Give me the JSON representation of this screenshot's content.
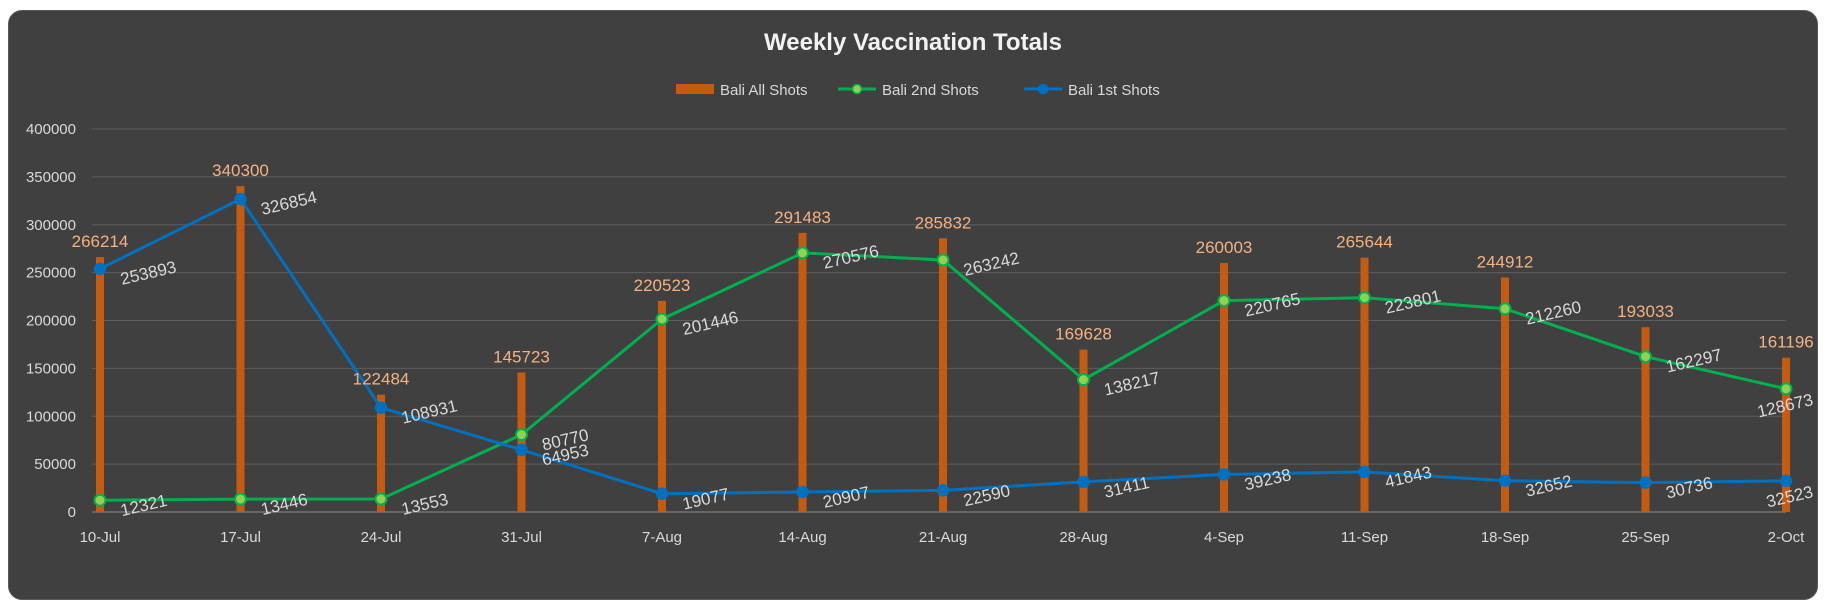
{
  "chart_data": {
    "type": "bar+line",
    "title": "Weekly Vaccination Totals",
    "categories": [
      "10-Jul",
      "17-Jul",
      "24-Jul",
      "31-Jul",
      "7-Aug",
      "14-Aug",
      "21-Aug",
      "28-Aug",
      "4-Sep",
      "11-Sep",
      "18-Sep",
      "25-Sep",
      "2-Oct"
    ],
    "ylim": [
      0,
      400000
    ],
    "yticks": [
      0,
      50000,
      100000,
      150000,
      200000,
      250000,
      300000,
      350000,
      400000
    ],
    "ytick_labels": [
      "0",
      "50000",
      "100000",
      "150000",
      "200000",
      "250000",
      "300000",
      "350000",
      "400000"
    ],
    "grid": true,
    "legend_position": "top",
    "series": [
      {
        "name": "Bali All Shots",
        "type": "bar",
        "color": "#c55a11",
        "label_color": "#f4b183",
        "values": [
          266214,
          340300,
          122484,
          145723,
          220523,
          291483,
          285832,
          169628,
          260003,
          265644,
          244912,
          193033,
          161196
        ],
        "labels": [
          "266214",
          "340300",
          "122484",
          "145723",
          "220523",
          "291483",
          "285832",
          "169628",
          "260003",
          "265644",
          "244912",
          "193033",
          "161196"
        ]
      },
      {
        "name": "Bali 2nd Shots",
        "type": "line",
        "color": "#00b050",
        "marker_color": "#92d050",
        "values": [
          12321,
          13446,
          13553,
          80770,
          201446,
          270576,
          263242,
          138217,
          220765,
          223801,
          212260,
          162297,
          128673
        ],
        "labels": [
          "12321",
          "13446",
          "13553",
          "80770",
          "201446",
          "270576",
          "263242",
          "138217",
          "220765",
          "223801",
          "212260",
          "162297",
          "128673"
        ]
      },
      {
        "name": "Bali 1st Shots",
        "type": "line",
        "color": "#0070c0",
        "marker_color": "#0070c0",
        "values": [
          253893,
          326854,
          108931,
          64953,
          19077,
          20907,
          22590,
          31411,
          39238,
          41843,
          32652,
          30736,
          32523
        ],
        "labels": [
          "253893",
          "326854",
          "108931",
          "64953",
          "19077",
          "20907",
          "22590",
          "31411",
          "39238",
          "41843",
          "32652",
          "30736",
          "32523"
        ]
      }
    ]
  }
}
